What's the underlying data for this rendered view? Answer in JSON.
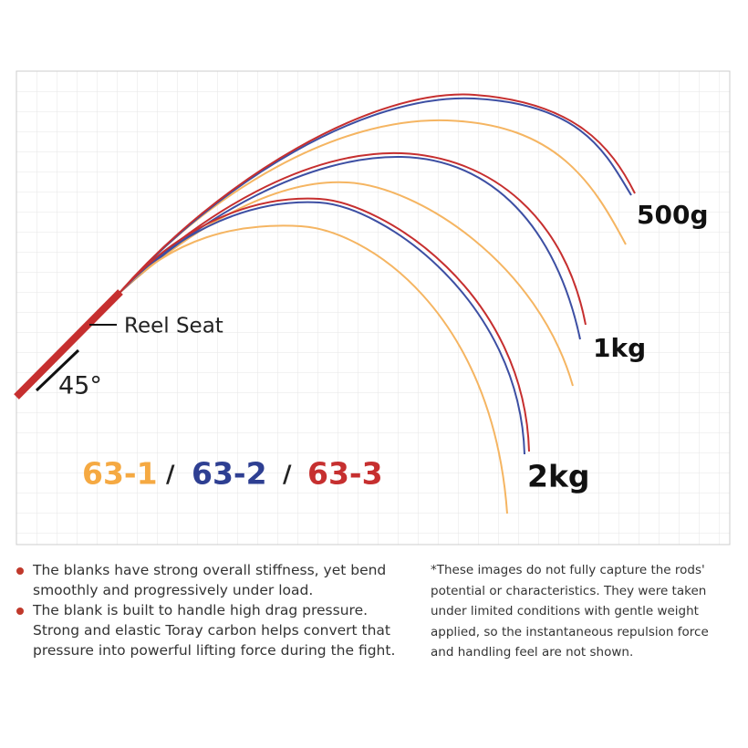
{
  "diagram": {
    "load_labels": [
      "500g",
      "1kg",
      "2kg"
    ],
    "reel_seat": "Reel Seat",
    "angle": "45°",
    "models": [
      "63-1",
      "63-2",
      "63-3"
    ],
    "separator": "/"
  },
  "bullets": [
    [
      "The blanks have strong overall stiffness, yet bend",
      "smoothly and progressively under load."
    ],
    [
      "The blank is built to handle high drag pressure.",
      "Strong and elastic Toray carbon helps convert that",
      "pressure into powerful lifting force during the fight."
    ]
  ],
  "note": [
    "*These images do not fully capture the rods'",
    "potential or characteristics. They were taken",
    "under limited conditions with gentle weight",
    "applied, so the instantaneous repulsion force",
    "and handling feel are not shown."
  ]
}
